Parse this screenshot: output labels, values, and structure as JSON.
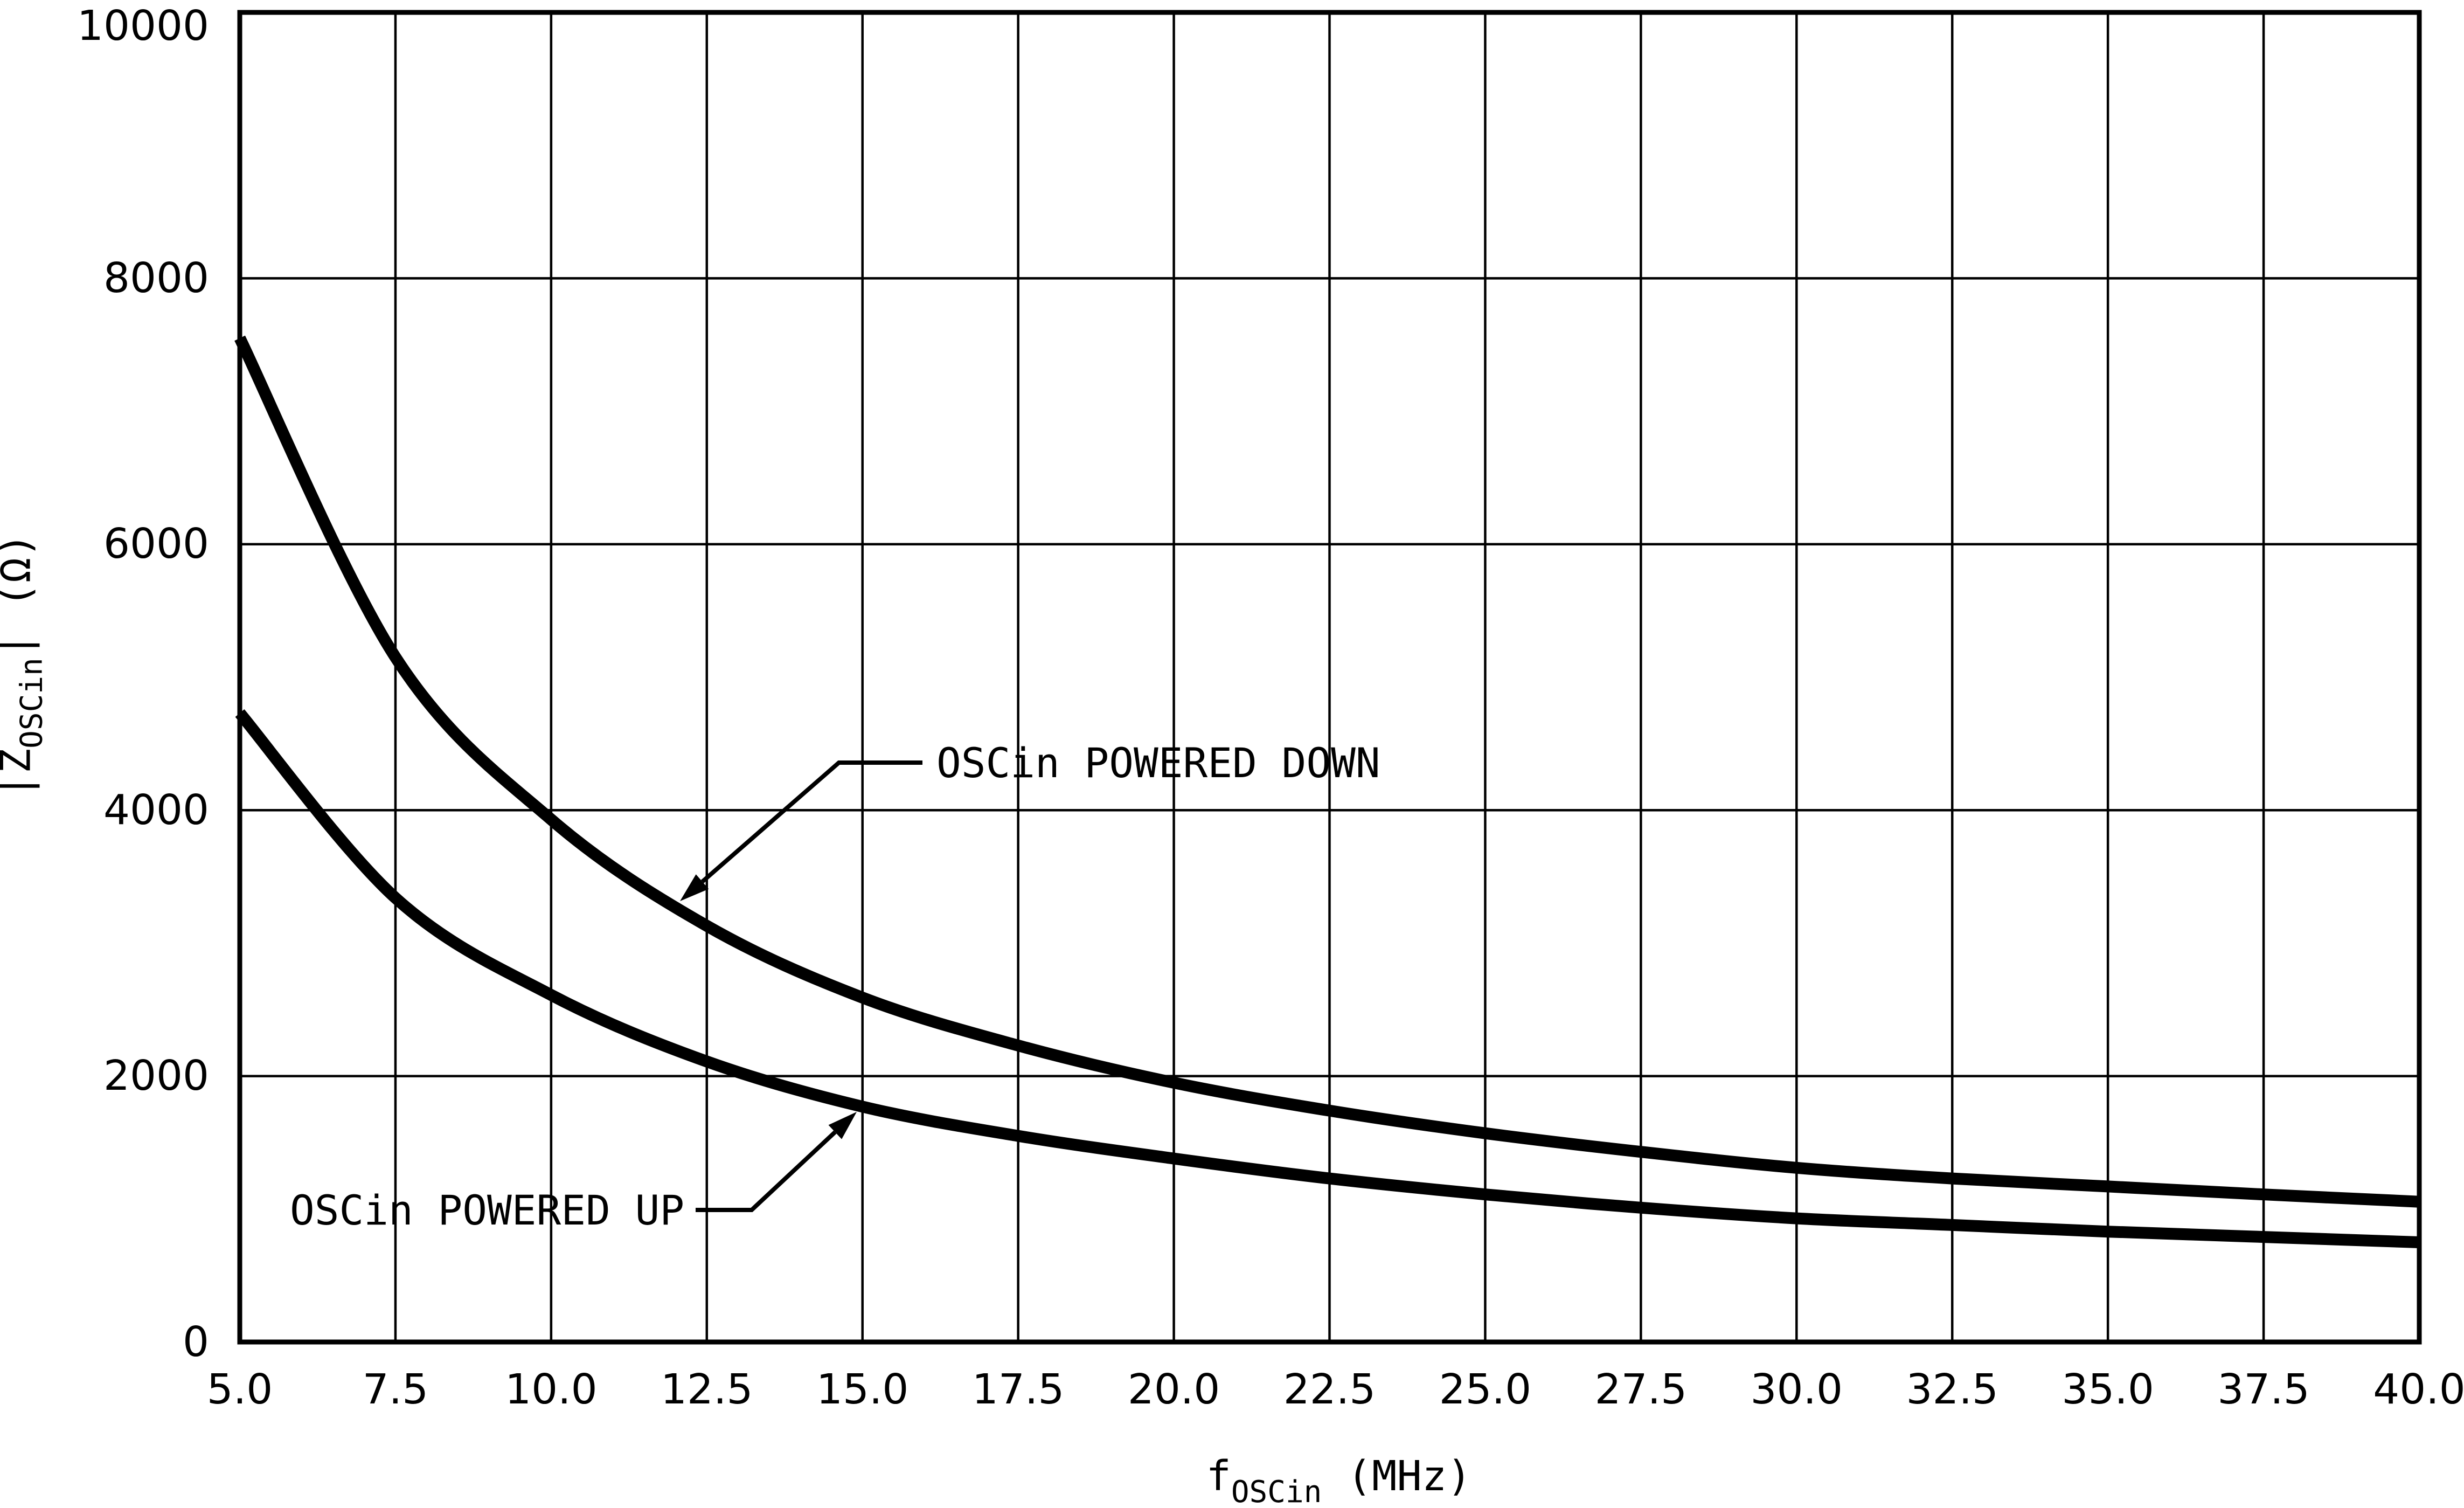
{
  "chart_data": {
    "type": "line",
    "title": "",
    "xlabel": {
      "base": "f",
      "sub": "OSCin",
      "unit": " (MHz)"
    },
    "ylabel": {
      "pre": "|Z",
      "sub": "OSCin",
      "post": "|",
      "unit": " (Ω)"
    },
    "xlim": [
      5,
      40
    ],
    "ylim": [
      0,
      10000
    ],
    "grid": "on",
    "x_tick_labels": [
      "5.0",
      "7.5",
      "10.0",
      "12.5",
      "15.0",
      "17.5",
      "20.0",
      "22.5",
      "25.0",
      "27.5",
      "30.0",
      "32.5",
      "35.0",
      "37.5",
      "40.0"
    ],
    "y_tick_labels": [
      "0",
      "2000",
      "4000",
      "6000",
      "8000",
      "10000"
    ],
    "x_mhz": [
      5,
      7.5,
      10,
      12.5,
      15,
      17.5,
      20,
      22.5,
      25,
      27.5,
      30,
      32.5,
      35,
      37.5,
      40
    ],
    "series": [
      {
        "name": "OSCin POWERED DOWN",
        "values_ohm": [
          7550,
          5150,
          3930,
          3130,
          2590,
          2230,
          1950,
          1740,
          1570,
          1430,
          1310,
          1230,
          1170,
          1110,
          1055
        ]
      },
      {
        "name": "OSCin POWERED UP",
        "values_ohm": [
          4730,
          3340,
          2610,
          2110,
          1770,
          1550,
          1380,
          1230,
          1110,
          1010,
          930,
          880,
          830,
          790,
          750
        ]
      }
    ],
    "annotations": [
      {
        "label": "OSCin POWERED DOWN",
        "points_to_mhz": 12.1,
        "series": 0
      },
      {
        "label": "OSCin POWERED UP",
        "points_to_mhz": 14.9,
        "series": 1
      }
    ],
    "ink_color": "#000000",
    "background": "#ffffff"
  }
}
